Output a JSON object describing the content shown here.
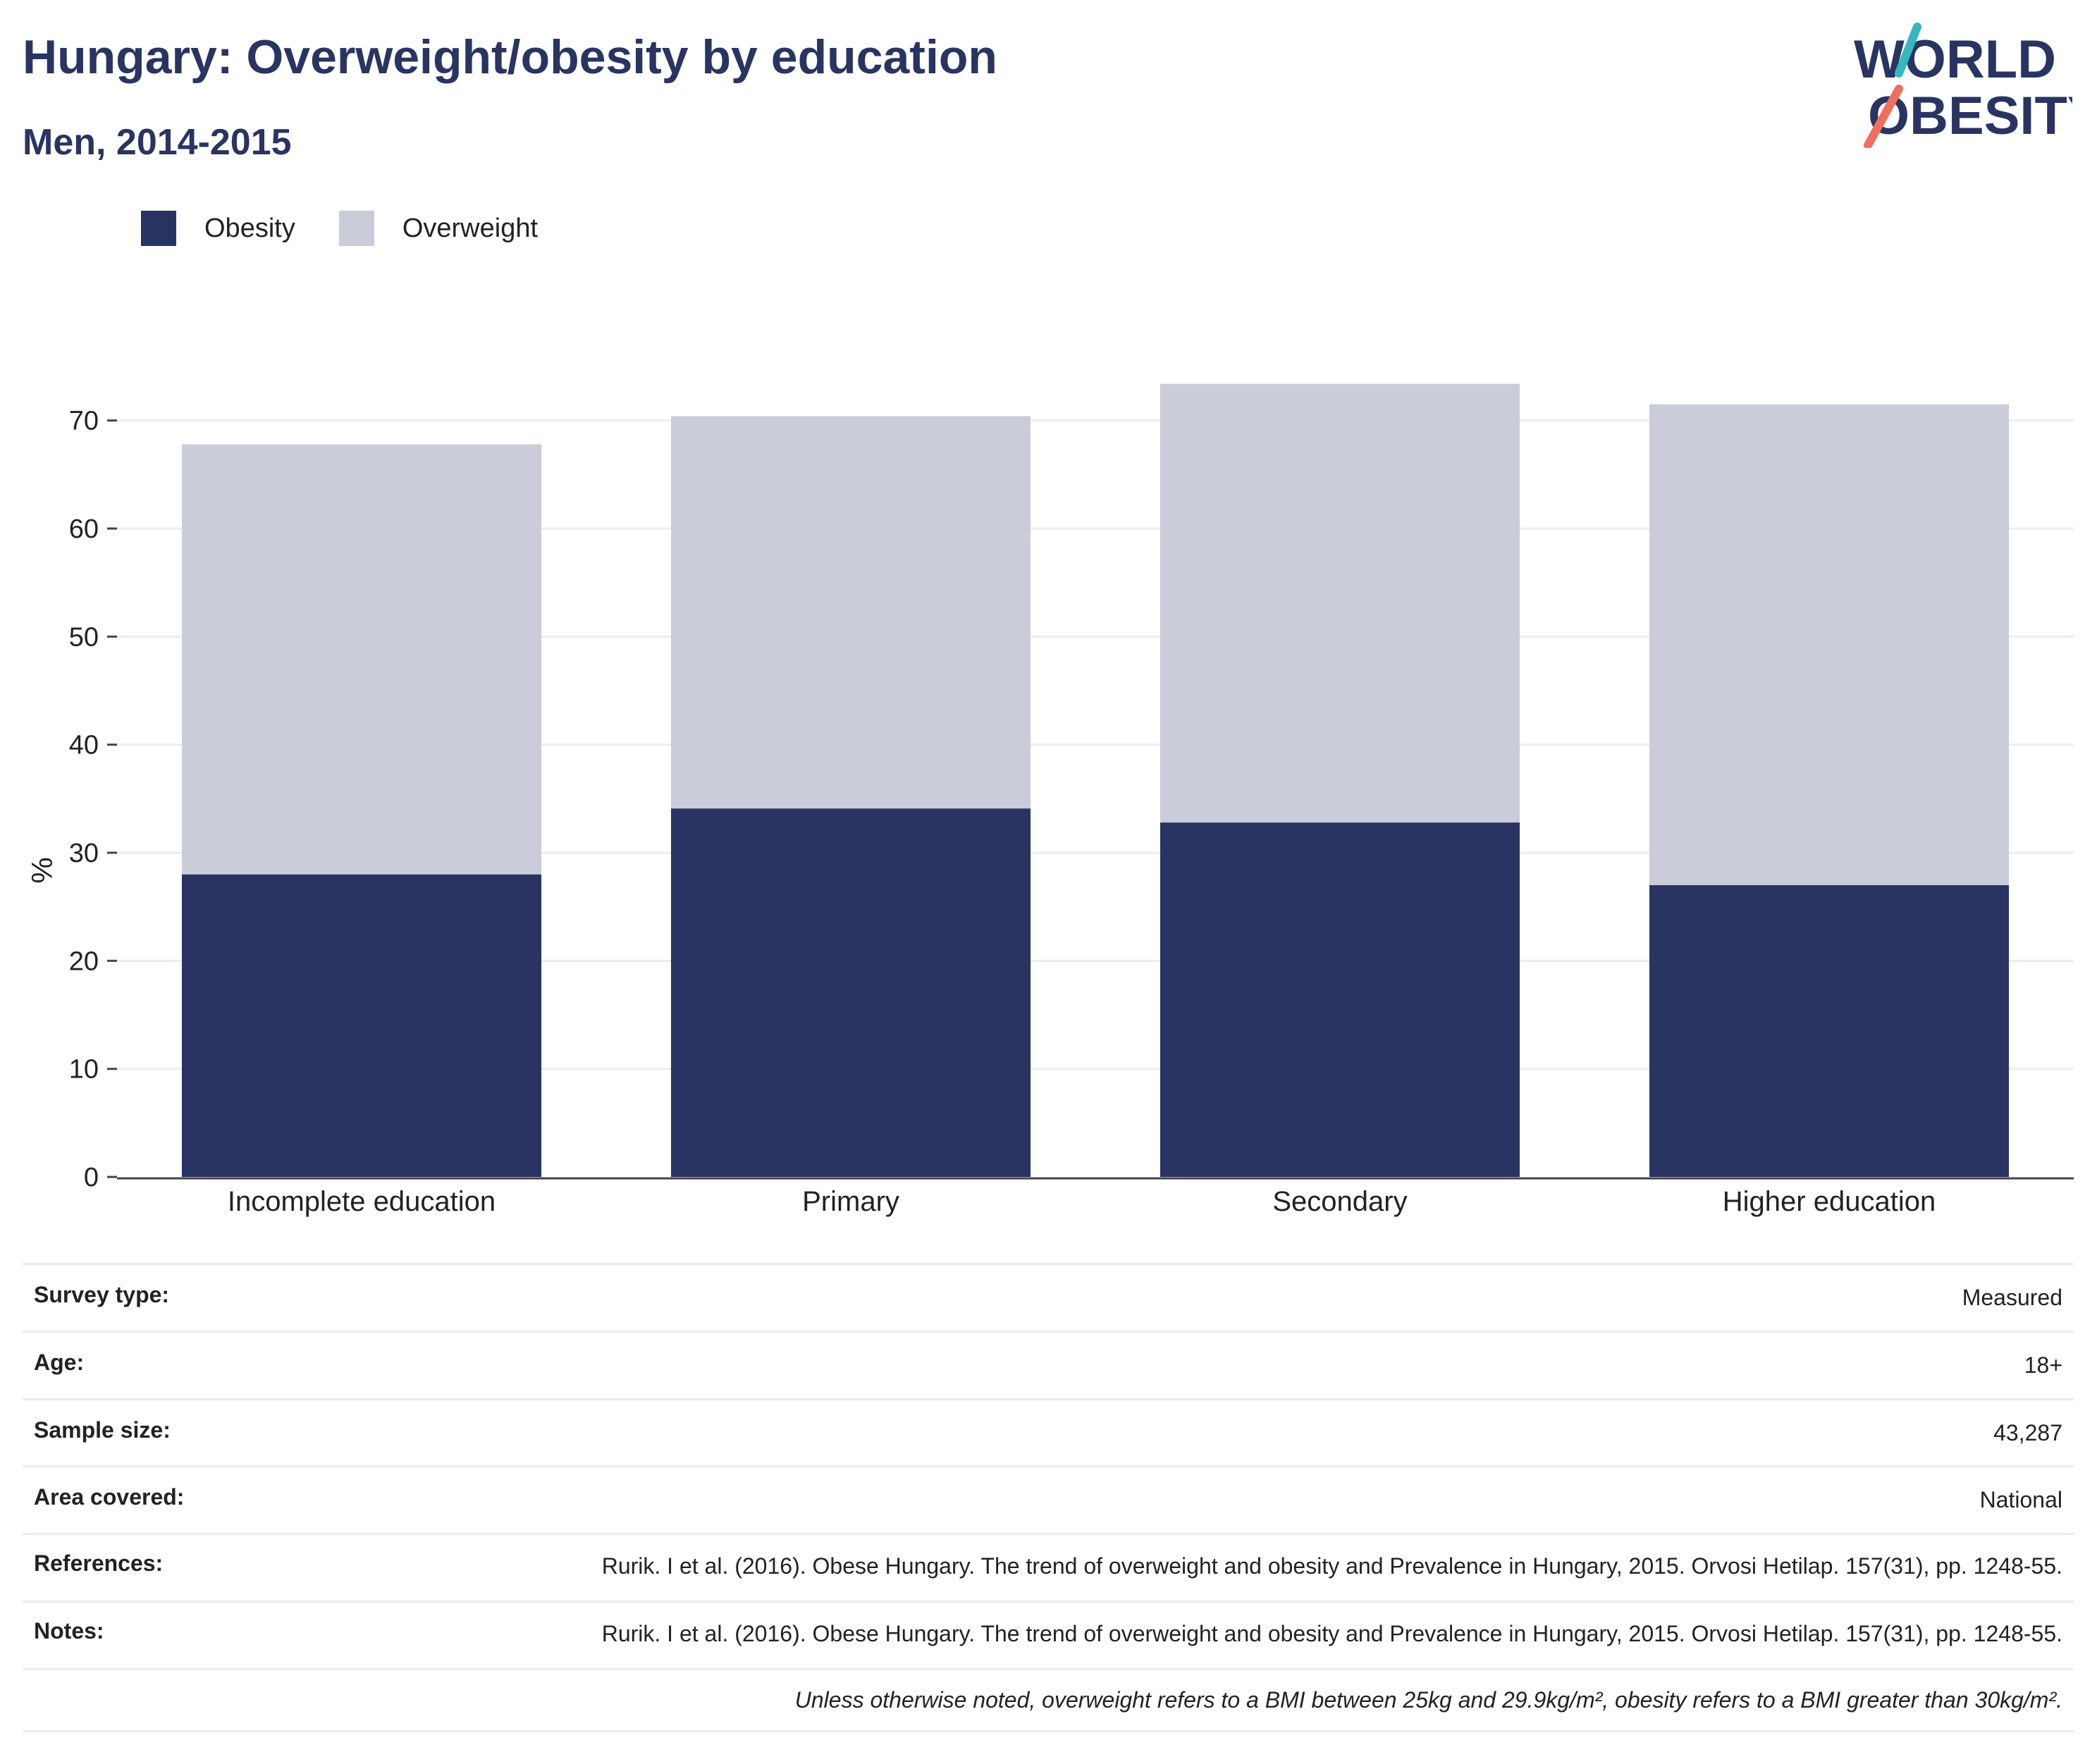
{
  "header": {
    "title": "Hungary: Overweight/obesity by education",
    "subtitle": "Men, 2014-2015"
  },
  "logo": {
    "line1": "WORLD",
    "line2": "OBESITY",
    "colors": {
      "text": "#293462",
      "slash_teal": "#35b7c0",
      "slash_coral": "#ef6f5e"
    }
  },
  "colors": {
    "obesity": "#293462",
    "overweight": "#cacdd9",
    "grid": "#ececf2",
    "axis": "#444444"
  },
  "chart_data": {
    "type": "bar",
    "stacked": true,
    "categories": [
      "Incomplete education",
      "Primary",
      "Secondary",
      "Higher education"
    ],
    "series": [
      {
        "name": "Obesity",
        "values": [
          28.0,
          34.1,
          32.8,
          27.0
        ]
      },
      {
        "name": "Overweight",
        "values": [
          39.8,
          36.3,
          40.6,
          44.5
        ]
      }
    ],
    "totals": [
      67.8,
      70.4,
      73.4,
      71.5
    ],
    "ylabel": "%",
    "xlabel": "",
    "ylim": [
      0,
      75
    ],
    "yticks": [
      0,
      10,
      20,
      30,
      40,
      50,
      60,
      70
    ],
    "grid": true,
    "legend": "top-left"
  },
  "info": {
    "rows": [
      {
        "label": "Survey type:",
        "value": "Measured"
      },
      {
        "label": "Age:",
        "value": "18+"
      },
      {
        "label": "Sample size:",
        "value": "43,287"
      },
      {
        "label": "Area covered:",
        "value": "National"
      },
      {
        "label": "References:",
        "value": "Rurik. I et al. (2016). Obese Hungary. The trend of overweight and obesity and Prevalence in Hungary, 2015. Orvosi Hetilap. 157(31), pp. 1248-55."
      },
      {
        "label": "Notes:",
        "value": "Rurik. I et al. (2016). Obese Hungary. The trend of overweight and obesity and Prevalence in Hungary, 2015. Orvosi Hetilap. 157(31), pp. 1248-55."
      }
    ],
    "footnote": "Unless otherwise noted, overweight refers to a BMI between 25kg and 29.9kg/m², obesity refers to a BMI greater than 30kg/m²."
  }
}
